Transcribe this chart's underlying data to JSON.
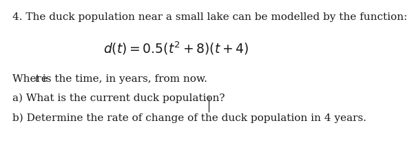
{
  "background_color": "#ffffff",
  "line1": "4. The duck population near a small lake can be modelled by the function:",
  "formula_main": "$d(t) = 0.5(t^{2} + 8)(t + 4)$",
  "line3_prefix": "Where ",
  "line3_t": "t",
  "line3_suffix": " is the time, in years, from now.",
  "line4a": "a) What is the current duck population?",
  "line4b": "b) Determine the rate of change of the duck population in 4 years.",
  "font_size_body": 11.0,
  "font_size_formula": 13.5,
  "text_color": "#1a1a1a",
  "cursor_color": "#333333"
}
